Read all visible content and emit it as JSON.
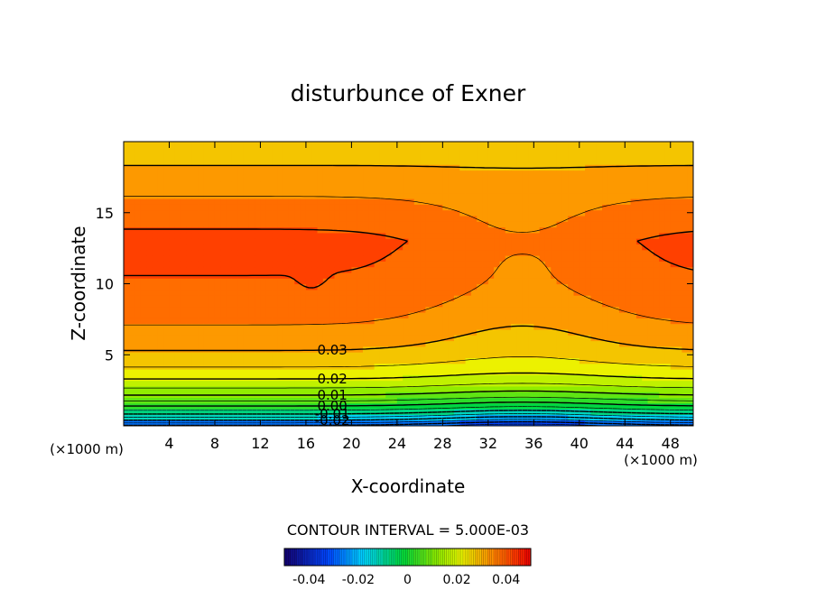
{
  "chart_data": {
    "type": "contour",
    "title": "disturbunce of Exner",
    "xlabel": "X-coordinate",
    "ylabel": "Z-coordinate",
    "x_unit_left": "(×1000 m)",
    "x_unit_right": "(×1000 m)",
    "xlim": [
      0,
      50
    ],
    "ylim": [
      0,
      20
    ],
    "x_ticks": [
      "4",
      "8",
      "12",
      "16",
      "20",
      "24",
      "28",
      "32",
      "36",
      "40",
      "44",
      "48"
    ],
    "y_ticks": [
      "5",
      "10",
      "15"
    ],
    "grid": false,
    "contour_interval_text": "CONTOUR INTERVAL = 5.000E-03",
    "contour_interval": 0.005,
    "contour_labels": [
      "0.03",
      "0.02",
      "0.01",
      "0.00",
      "-0.01",
      "-0.02"
    ],
    "colorbar": {
      "range": [
        -0.05,
        0.05
      ],
      "ticks": [
        "-0.04",
        "-0.02",
        "0",
        "0.02",
        "0.04"
      ]
    }
  }
}
